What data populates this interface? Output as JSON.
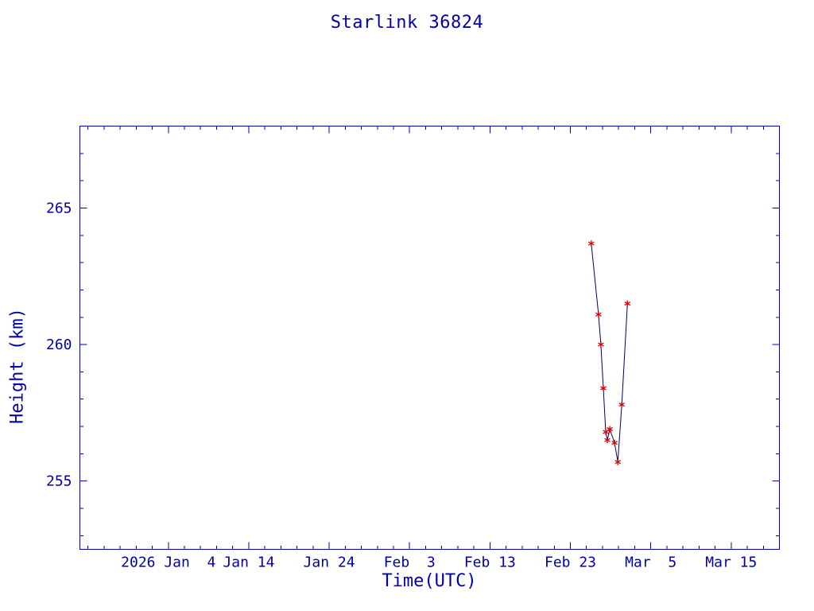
{
  "chart_data": {
    "type": "line",
    "title": "Starlink 36824",
    "xlabel": "Time(UTC)",
    "ylabel": "Height (km)",
    "grid": false,
    "legend": "none",
    "background": "#FFFFFF",
    "axis_color": "#0000AA",
    "line_color": "#000066",
    "marker_color": "#DD0000",
    "marker": "asterisk",
    "x_unit": "days since 2026 Jan 4 00:00 UTC",
    "xlim": [
      -11,
      76
    ],
    "ylim": [
      252.5,
      268
    ],
    "x_ticks": [
      {
        "day": 0,
        "label": "2026 Jan  4"
      },
      {
        "day": 10,
        "label": "Jan 14"
      },
      {
        "day": 20,
        "label": "Jan 24"
      },
      {
        "day": 30,
        "label": "Feb  3"
      },
      {
        "day": 40,
        "label": "Feb 13"
      },
      {
        "day": 50,
        "label": "Feb 23"
      },
      {
        "day": 60,
        "label": "Mar  5"
      },
      {
        "day": 70,
        "label": "Mar 15"
      }
    ],
    "x_minor_tick_step_days": 2,
    "y_ticks": [
      {
        "value": 255,
        "label": "255"
      },
      {
        "value": 260,
        "label": "260"
      },
      {
        "value": 265,
        "label": "265"
      }
    ],
    "y_minor_tick_step_km": 1,
    "series": [
      {
        "name": "Starlink 36824 height",
        "points": [
          {
            "day": 52.6,
            "height_km": 263.7
          },
          {
            "day": 53.5,
            "height_km": 261.1
          },
          {
            "day": 53.8,
            "height_km": 260.0
          },
          {
            "day": 54.1,
            "height_km": 258.4
          },
          {
            "day": 54.4,
            "height_km": 256.8
          },
          {
            "day": 54.6,
            "height_km": 256.5
          },
          {
            "day": 54.9,
            "height_km": 256.9
          },
          {
            "day": 55.5,
            "height_km": 256.4
          },
          {
            "day": 55.9,
            "height_km": 255.7
          },
          {
            "day": 56.4,
            "height_km": 257.8
          },
          {
            "day": 57.1,
            "height_km": 261.5
          }
        ]
      }
    ]
  }
}
